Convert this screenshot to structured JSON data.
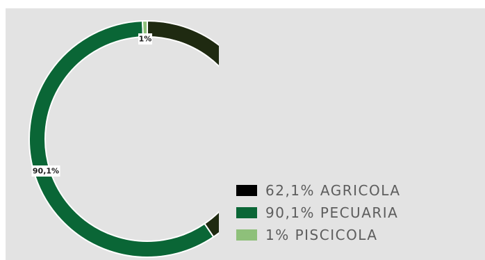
{
  "chart_data": {
    "type": "pie",
    "variant": "donut",
    "title": "",
    "categories": [
      "AGRICOLA",
      "PECUARIA",
      "PISCICOLA"
    ],
    "values": [
      62.1,
      90.1,
      1
    ],
    "value_labels": [
      "62,1%",
      "90,1%",
      "1%"
    ],
    "legend_labels": [
      "62,1% AGRICOLA",
      "90,1% PECUARIA",
      "1% PISCICOLA"
    ],
    "colors": [
      "#1f2a11",
      "#0a6636",
      "#8ec07a"
    ],
    "legend_placement": "bottom-right"
  },
  "legend_colors": [
    "#000000",
    "#0a6636",
    "#8ec07a"
  ]
}
